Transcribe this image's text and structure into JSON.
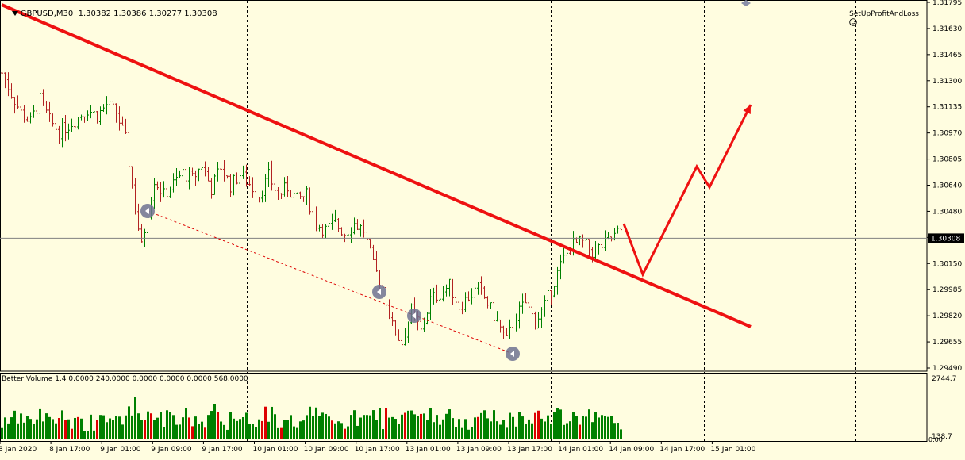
{
  "header": {
    "symbol": "GBPUSD,M30",
    "open": "1.30382",
    "high": "1.30386",
    "low": "1.30277",
    "close": "1.30308"
  },
  "ea_label": "SetUpProfitAndLoss",
  "ea_icon": "smiley-icon",
  "indicator": {
    "name": "Better Volume 1.4",
    "values": [
      "0.0000",
      "240.0000",
      "0.0000",
      "0.0000",
      "0.0000",
      "568.0000"
    ]
  },
  "colors": {
    "background": "#fffde0",
    "bull": "#008000",
    "bear": "#b22222",
    "trendline": "#ee1111",
    "volume_up": "#008000",
    "volume_climax": "#dd0000"
  },
  "chart_data": {
    "type": "candlestick",
    "price_axis_ticks": [
      "1.31795",
      "1.31630",
      "1.31465",
      "1.31300",
      "1.31135",
      "1.30970",
      "1.30805",
      "1.30640",
      "1.30480",
      "1.30315",
      "1.30150",
      "1.29985",
      "1.29820",
      "1.29655",
      "1.29490"
    ],
    "current_price": "1.30308",
    "volume_axis_ticks": [
      "2744.7",
      "138.7",
      "0.00"
    ],
    "time_labels": [
      "8 Jan 2020",
      "8 Jan 17:00",
      "9 Jan 01:00",
      "9 Jan 09:00",
      "9 Jan 17:00",
      "10 Jan 01:00",
      "10 Jan 09:00",
      "10 Jan 17:00",
      "13 Jan 01:00",
      "13 Jan 09:00",
      "13 Jan 17:00",
      "14 Jan 01:00",
      "14 Jan 09:00",
      "14 Jan 17:00",
      "15 Jan 01:00"
    ],
    "close_path": [
      [
        0,
        1.3135
      ],
      [
        3,
        1.3122
      ],
      [
        6,
        1.311
      ],
      [
        9,
        1.3104
      ],
      [
        12,
        1.3118
      ],
      [
        15,
        1.3105
      ],
      [
        18,
        1.3098
      ],
      [
        21,
        1.3102
      ],
      [
        24,
        1.3107
      ],
      [
        27,
        1.3112
      ],
      [
        30,
        1.3108
      ],
      [
        33,
        1.3115
      ],
      [
        36,
        1.311
      ],
      [
        39,
        1.3093
      ],
      [
        42,
        1.305
      ],
      [
        44,
        1.3025
      ],
      [
        46,
        1.3048
      ],
      [
        48,
        1.3068
      ],
      [
        51,
        1.3058
      ],
      [
        54,
        1.3065
      ],
      [
        57,
        1.3072
      ],
      [
        60,
        1.3068
      ],
      [
        63,
        1.3077
      ],
      [
        66,
        1.3062
      ],
      [
        69,
        1.3076
      ],
      [
        72,
        1.3064
      ],
      [
        75,
        1.3071
      ],
      [
        78,
        1.3065
      ],
      [
        81,
        1.3058
      ],
      [
        84,
        1.307
      ],
      [
        87,
        1.3058
      ],
      [
        90,
        1.3063
      ],
      [
        93,
        1.3055
      ],
      [
        96,
        1.3058
      ],
      [
        99,
        1.304
      ],
      [
        102,
        1.3036
      ],
      [
        105,
        1.304
      ],
      [
        108,
        1.3034
      ],
      [
        111,
        1.304
      ],
      [
        114,
        1.3036
      ],
      [
        117,
        1.3013
      ],
      [
        120,
        1.3
      ],
      [
        123,
        1.2975
      ],
      [
        126,
        1.2965
      ],
      [
        129,
        1.2985
      ],
      [
        132,
        1.2972
      ],
      [
        135,
        1.2992
      ],
      [
        138,
        1.2996
      ],
      [
        141,
        1.3001
      ],
      [
        144,
        1.2988
      ],
      [
        147,
        1.2994
      ],
      [
        150,
        1.2999
      ],
      [
        153,
        1.299
      ],
      [
        156,
        1.2978
      ],
      [
        159,
        1.2966
      ],
      [
        162,
        1.2982
      ],
      [
        165,
        1.299
      ],
      [
        168,
        1.2978
      ],
      [
        171,
        1.2988
      ],
      [
        174,
        1.3004
      ],
      [
        177,
        1.3018
      ],
      [
        180,
        1.3027
      ],
      [
        183,
        1.3028
      ],
      [
        186,
        1.3022
      ],
      [
        189,
        1.3026
      ],
      [
        192,
        1.303
      ],
      [
        195,
        1.3036
      ]
    ],
    "trendline": {
      "p1": [
        0,
        1.3178
      ],
      "p2": [
        236,
        1.2975
      ]
    },
    "support_line": {
      "p1": [
        46,
        1.3048
      ],
      "p2": [
        161,
        1.2958
      ]
    },
    "arrow_markers": [
      [
        46,
        1.3048
      ],
      [
        119,
        1.2997
      ],
      [
        130,
        1.2982
      ],
      [
        161,
        1.2958
      ]
    ],
    "forecast_path": [
      [
        196,
        1.304
      ],
      [
        202,
        1.3008
      ],
      [
        219,
        1.3076
      ],
      [
        223,
        1.3063
      ],
      [
        236,
        1.3115
      ]
    ]
  }
}
